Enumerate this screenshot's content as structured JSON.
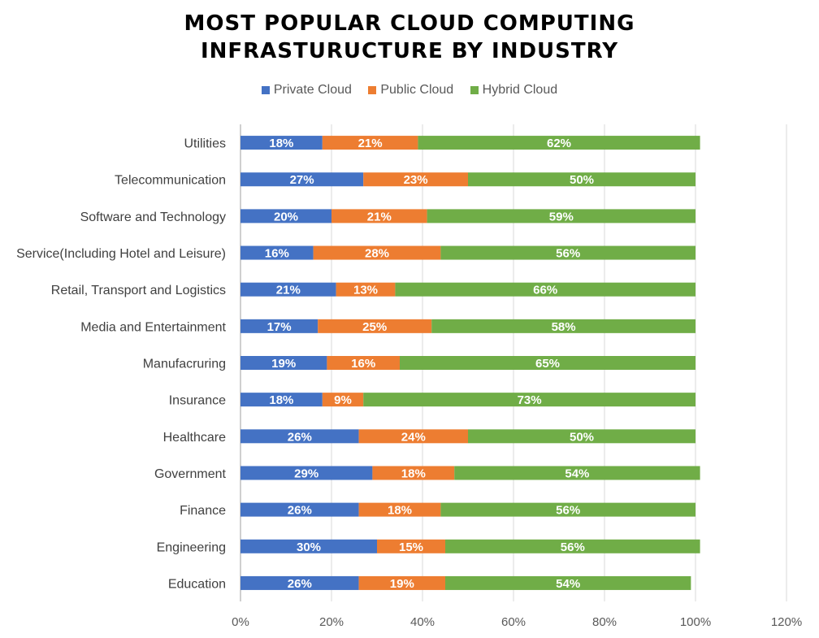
{
  "chart_data": {
    "type": "bar",
    "orientation": "horizontal",
    "stacked": true,
    "title_lines": [
      "MOST POPULAR CLOUD COMPUTING",
      "INFRASTURUCTURE BY INDUSTRY"
    ],
    "categories": [
      "Utilities",
      "Telecommunication",
      "Software and Technology",
      "Service(Including Hotel and Leisure)",
      "Retail, Transport and Logistics",
      "Media and Entertainment",
      "Manufacruring",
      "Insurance",
      "Healthcare",
      "Government",
      "Finance",
      "Engineering",
      "Education"
    ],
    "series": [
      {
        "name": "Private Cloud",
        "color": "#4472C4",
        "values": [
          18,
          27,
          20,
          16,
          21,
          17,
          19,
          18,
          26,
          29,
          26,
          30,
          26
        ]
      },
      {
        "name": "Public Cloud",
        "color": "#ED7D31",
        "values": [
          21,
          23,
          21,
          28,
          13,
          25,
          16,
          9,
          24,
          18,
          18,
          15,
          19
        ]
      },
      {
        "name": "Hybrid Cloud",
        "color": "#70AD47",
        "values": [
          62,
          50,
          59,
          56,
          66,
          58,
          65,
          73,
          50,
          54,
          56,
          56,
          54
        ]
      }
    ],
    "xlim": [
      0,
      120
    ],
    "xticks": [
      0,
      20,
      40,
      60,
      80,
      100,
      120
    ],
    "tick_suffix": "%",
    "label_suffix": "%",
    "legend_position": "top",
    "grid": "vertical"
  }
}
